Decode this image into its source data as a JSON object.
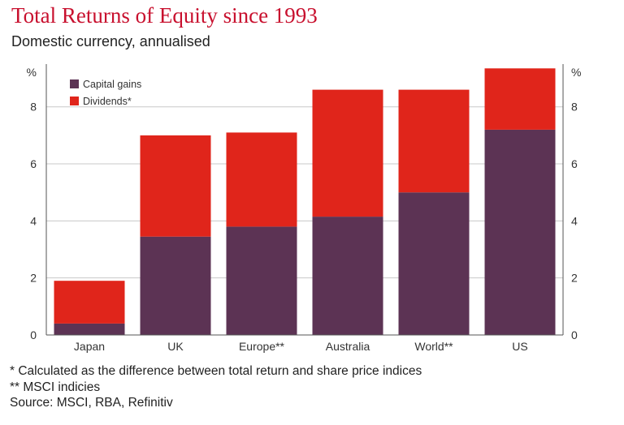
{
  "title": "Total Returns of Equity since 1993",
  "subtitle": "Domestic currency, annualised",
  "colors": {
    "capital_gains": "#5c3354",
    "dividends": "#e0251b",
    "title": "#c8102e",
    "grid": "#c8c8c8"
  },
  "chart_data": {
    "type": "bar",
    "stacked": true,
    "categories": [
      "Japan",
      "UK",
      "Europe**",
      "Australia",
      "World**",
      "US"
    ],
    "series": [
      {
        "name": "Capital gains",
        "values": [
          0.4,
          3.45,
          3.8,
          4.15,
          5.0,
          7.2
        ]
      },
      {
        "name": "Dividends*",
        "values": [
          1.5,
          3.55,
          3.3,
          4.45,
          3.6,
          2.15
        ]
      }
    ],
    "ylim": [
      0,
      9.5
    ],
    "yticks": [
      0,
      2,
      4,
      6,
      8
    ],
    "ylabel_left": "%",
    "ylabel_right": "%",
    "legend_position": "top-left",
    "grid": true
  },
  "footnotes": [
    "* Calculated as the difference between total return and share price indices",
    "** MSCI indicies",
    "Source: MSCI, RBA, Refinitiv"
  ]
}
